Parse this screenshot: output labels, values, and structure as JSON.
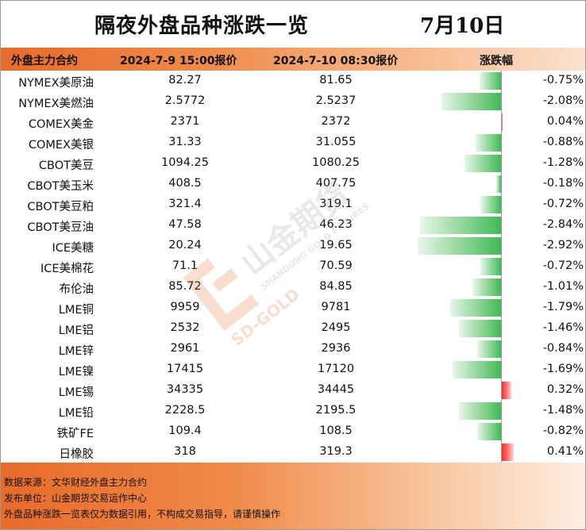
{
  "header": {
    "title": "隔夜外盘品种涨跌一览",
    "date": "7月10日"
  },
  "columns": {
    "name": "外盘主力合约",
    "price_prev": "2024-7-9 15:00报价",
    "price_curr": "2024-7-10 08:30报价",
    "change": "涨跌幅"
  },
  "rows": [
    {
      "name": "NYMEX美原油",
      "price_prev": "82.27",
      "price_curr": "81.65",
      "change": "-0.75%",
      "change_value": -0.75
    },
    {
      "name": "NYMEX美燃油",
      "price_prev": "2.5772",
      "price_curr": "2.5237",
      "change": "-2.08%",
      "change_value": -2.08
    },
    {
      "name": "COMEX美金",
      "price_prev": "2371",
      "price_curr": "2372",
      "change": "0.04%",
      "change_value": 0.04
    },
    {
      "name": "COMEX美银",
      "price_prev": "31.33",
      "price_curr": "31.055",
      "change": "-0.88%",
      "change_value": -0.88
    },
    {
      "name": "CBOT美豆",
      "price_prev": "1094.25",
      "price_curr": "1080.25",
      "change": "-1.28%",
      "change_value": -1.28
    },
    {
      "name": "CBOT美玉米",
      "price_prev": "408.5",
      "price_curr": "407.75",
      "change": "-0.18%",
      "change_value": -0.18
    },
    {
      "name": "CBOT美豆粕",
      "price_prev": "321.4",
      "price_curr": "319.1",
      "change": "-0.72%",
      "change_value": -0.72
    },
    {
      "name": "CBOT美豆油",
      "price_prev": "47.58",
      "price_curr": "46.23",
      "change": "-2.84%",
      "change_value": -2.84
    },
    {
      "name": "ICE美糖",
      "price_prev": "20.24",
      "price_curr": "19.65",
      "change": "-2.92%",
      "change_value": -2.92
    },
    {
      "name": "ICE美棉花",
      "price_prev": "71.1",
      "price_curr": "70.59",
      "change": "-0.72%",
      "change_value": -0.72
    },
    {
      "name": "布伦油",
      "price_prev": "85.72",
      "price_curr": "84.85",
      "change": "-1.01%",
      "change_value": -1.01
    },
    {
      "name": "LME铜",
      "price_prev": "9959",
      "price_curr": "9781",
      "change": "-1.79%",
      "change_value": -1.79
    },
    {
      "name": "LME铝",
      "price_prev": "2532",
      "price_curr": "2495",
      "change": "-1.46%",
      "change_value": -1.46
    },
    {
      "name": "LME锌",
      "price_prev": "2961",
      "price_curr": "2936",
      "change": "-0.84%",
      "change_value": -0.84
    },
    {
      "name": "LME镍",
      "price_prev": "17415",
      "price_curr": "17120",
      "change": "-1.69%",
      "change_value": -1.69
    },
    {
      "name": "LME锡",
      "price_prev": "34335",
      "price_curr": "34445",
      "change": "0.32%",
      "change_value": 0.32
    },
    {
      "name": "LME铅",
      "price_prev": "2228.5",
      "price_curr": "2195.5",
      "change": "-1.48%",
      "change_value": -1.48
    },
    {
      "name": "铁矿FE",
      "price_prev": "109.4",
      "price_curr": "108.5",
      "change": "-0.82%",
      "change_value": -0.82
    },
    {
      "name": "日橡胶",
      "price_prev": "318",
      "price_curr": "319.3",
      "change": "0.41%",
      "change_value": 0.41
    }
  ],
  "footer": {
    "source": "数据来源：文华财经外盘主力合约",
    "publisher": "发布单位：山金期货交易运作中心",
    "disclaimer": "外盘品种涨跌一览表仅为数据引用，不构成交易指导，请谨慎操作"
  },
  "watermark": {
    "cn": "山金期货",
    "en": "SHANDONG GOLD FUTURES",
    "brand": "SD-GOLD"
  },
  "colors": {
    "accent_orange": "#e86b2a",
    "up_red": "#ff2a2a",
    "down_green": "#3fba53"
  }
}
